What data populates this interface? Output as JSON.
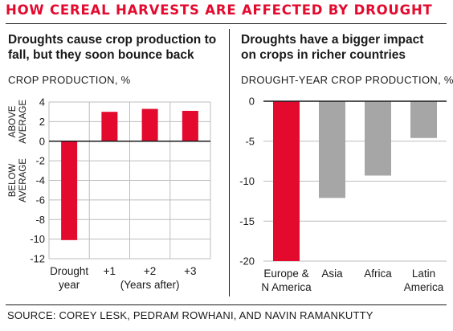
{
  "header": {
    "title": "HOW CEREAL HARVESTS ARE AFFECTED BY DROUGHT",
    "source": "SOURCE: COREY LESK, PEDRAM ROWHANI, AND NAVIN RAMANKUTTY"
  },
  "colors": {
    "accent": "#e30a2e",
    "grey": "#a6a6a6",
    "grid": "#bdbdbd"
  },
  "chart_data": [
    {
      "type": "bar",
      "title": "Droughts cause crop production to fall, but they soon bounce back",
      "ylabel": "CROP PRODUCTION, %",
      "y_region_labels": {
        "above": [
          "ABOVE",
          "AVERAGE"
        ],
        "below": [
          "BELOW",
          "AVERAGE"
        ]
      },
      "categories": [
        [
          "Drought",
          "year"
        ],
        [
          "+1"
        ],
        [
          "+2",
          "(Years after)"
        ],
        [
          "+3"
        ]
      ],
      "values": [
        -10.1,
        3.0,
        3.3,
        3.1
      ],
      "bar_colors": [
        "#e30a2e",
        "#e30a2e",
        "#e30a2e",
        "#e30a2e"
      ],
      "ylim": [
        -12,
        4
      ],
      "yticks": [
        4,
        2,
        0,
        -2,
        -4,
        -6,
        -8,
        -10,
        -12
      ],
      "grid": true
    },
    {
      "type": "bar",
      "title": "Droughts have a bigger impact on crops in richer countries",
      "ylabel": "DROUGHT-YEAR CROP PRODUCTION, %",
      "categories": [
        [
          "Europe &",
          "N America"
        ],
        [
          "Asia"
        ],
        [
          "Africa"
        ],
        [
          "Latin",
          "America"
        ]
      ],
      "values": [
        -20,
        -12.1,
        -9.3,
        -4.6
      ],
      "bar_colors": [
        "#e30a2e",
        "#a6a6a6",
        "#a6a6a6",
        "#a6a6a6"
      ],
      "ylim": [
        -20,
        0
      ],
      "yticks": [
        0,
        -5,
        -10,
        -15,
        -20
      ],
      "grid": true
    }
  ]
}
